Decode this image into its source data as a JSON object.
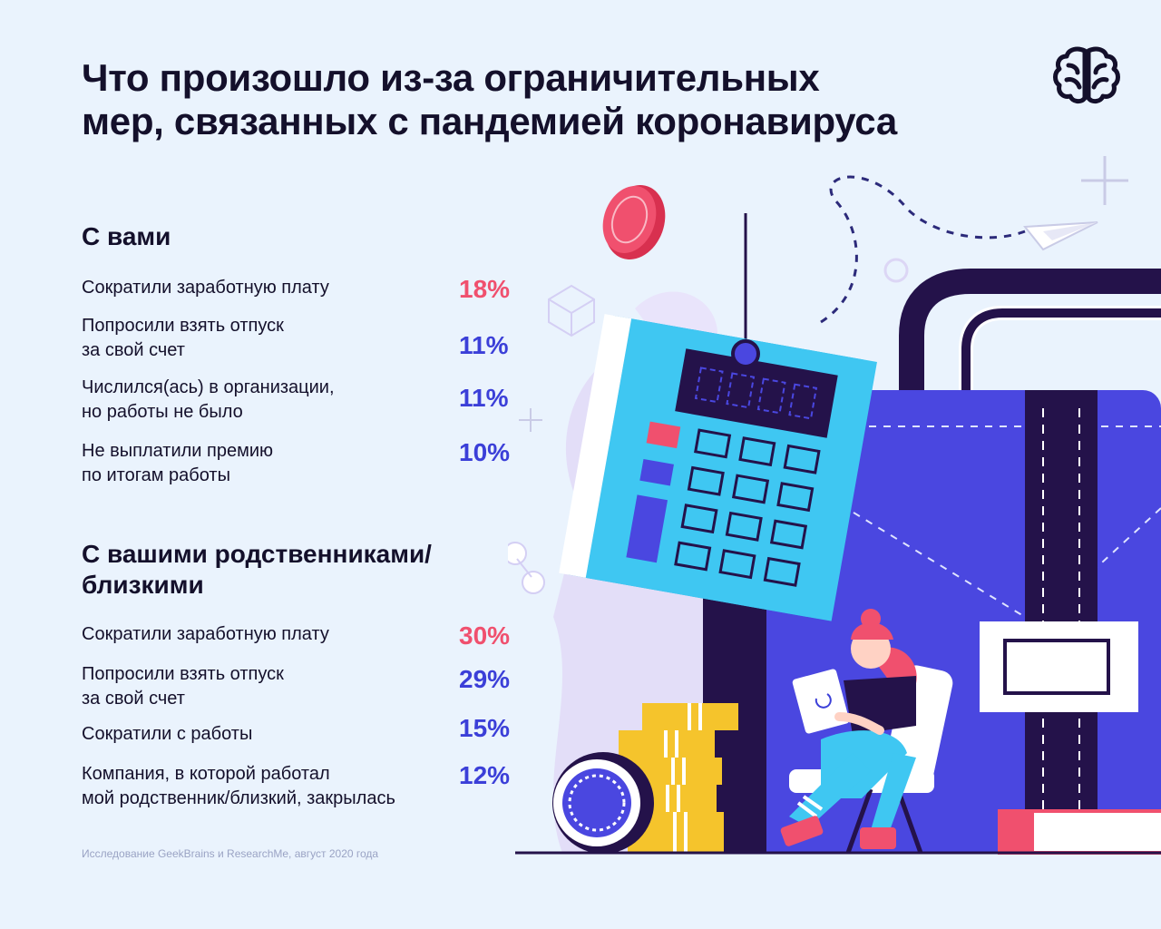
{
  "title": {
    "line1": "Что произошло из-за ограничительных",
    "line2": "мер, связанных с пандемией коронавируса"
  },
  "logo": {
    "icon": "brain-icon"
  },
  "sections": [
    {
      "title_lines": [
        "С вами"
      ],
      "rows": [
        {
          "label_lines": [
            "Сократили заработную плату"
          ],
          "value": "18%",
          "color": "#f0506e"
        },
        {
          "label_lines": [
            "Попросили взять отпуск",
            "за свой счет"
          ],
          "value": "11%",
          "color": "#3b3fd8"
        },
        {
          "label_lines": [
            "Числился(ась) в организации,",
            "но работы не было"
          ],
          "value": "11%",
          "color": "#3b3fd8"
        },
        {
          "label_lines": [
            "Не выплатили премию",
            "по итогам работы"
          ],
          "value": "10%",
          "color": "#3b3fd8"
        }
      ]
    },
    {
      "title_lines": [
        "С вашими родственниками/",
        "близкими"
      ],
      "rows": [
        {
          "label_lines": [
            "Сократили заработную плату"
          ],
          "value": "30%",
          "color": "#f0506e"
        },
        {
          "label_lines": [
            "Попросили взять отпуск",
            "за свой счет"
          ],
          "value": "29%",
          "color": "#3b3fd8"
        },
        {
          "label_lines": [
            "Сократили с работы"
          ],
          "value": "15%",
          "color": "#3b3fd8"
        },
        {
          "label_lines": [
            "Компания, в которой работал",
            "мой родственник/близкий, закрылась"
          ],
          "value": "12%",
          "color": "#3b3fd8"
        }
      ]
    }
  ],
  "footnote": "Исследование GeekBrains и ResearchMe, август 2020 года",
  "colors": {
    "background": "#eaf3fd",
    "accent_red": "#f0506e",
    "accent_blue": "#3b3fd8",
    "briefcase": "#4a47e0",
    "calculator": "#3fc7f2",
    "dark": "#24124a",
    "coin_yellow": "#f5c42c"
  }
}
